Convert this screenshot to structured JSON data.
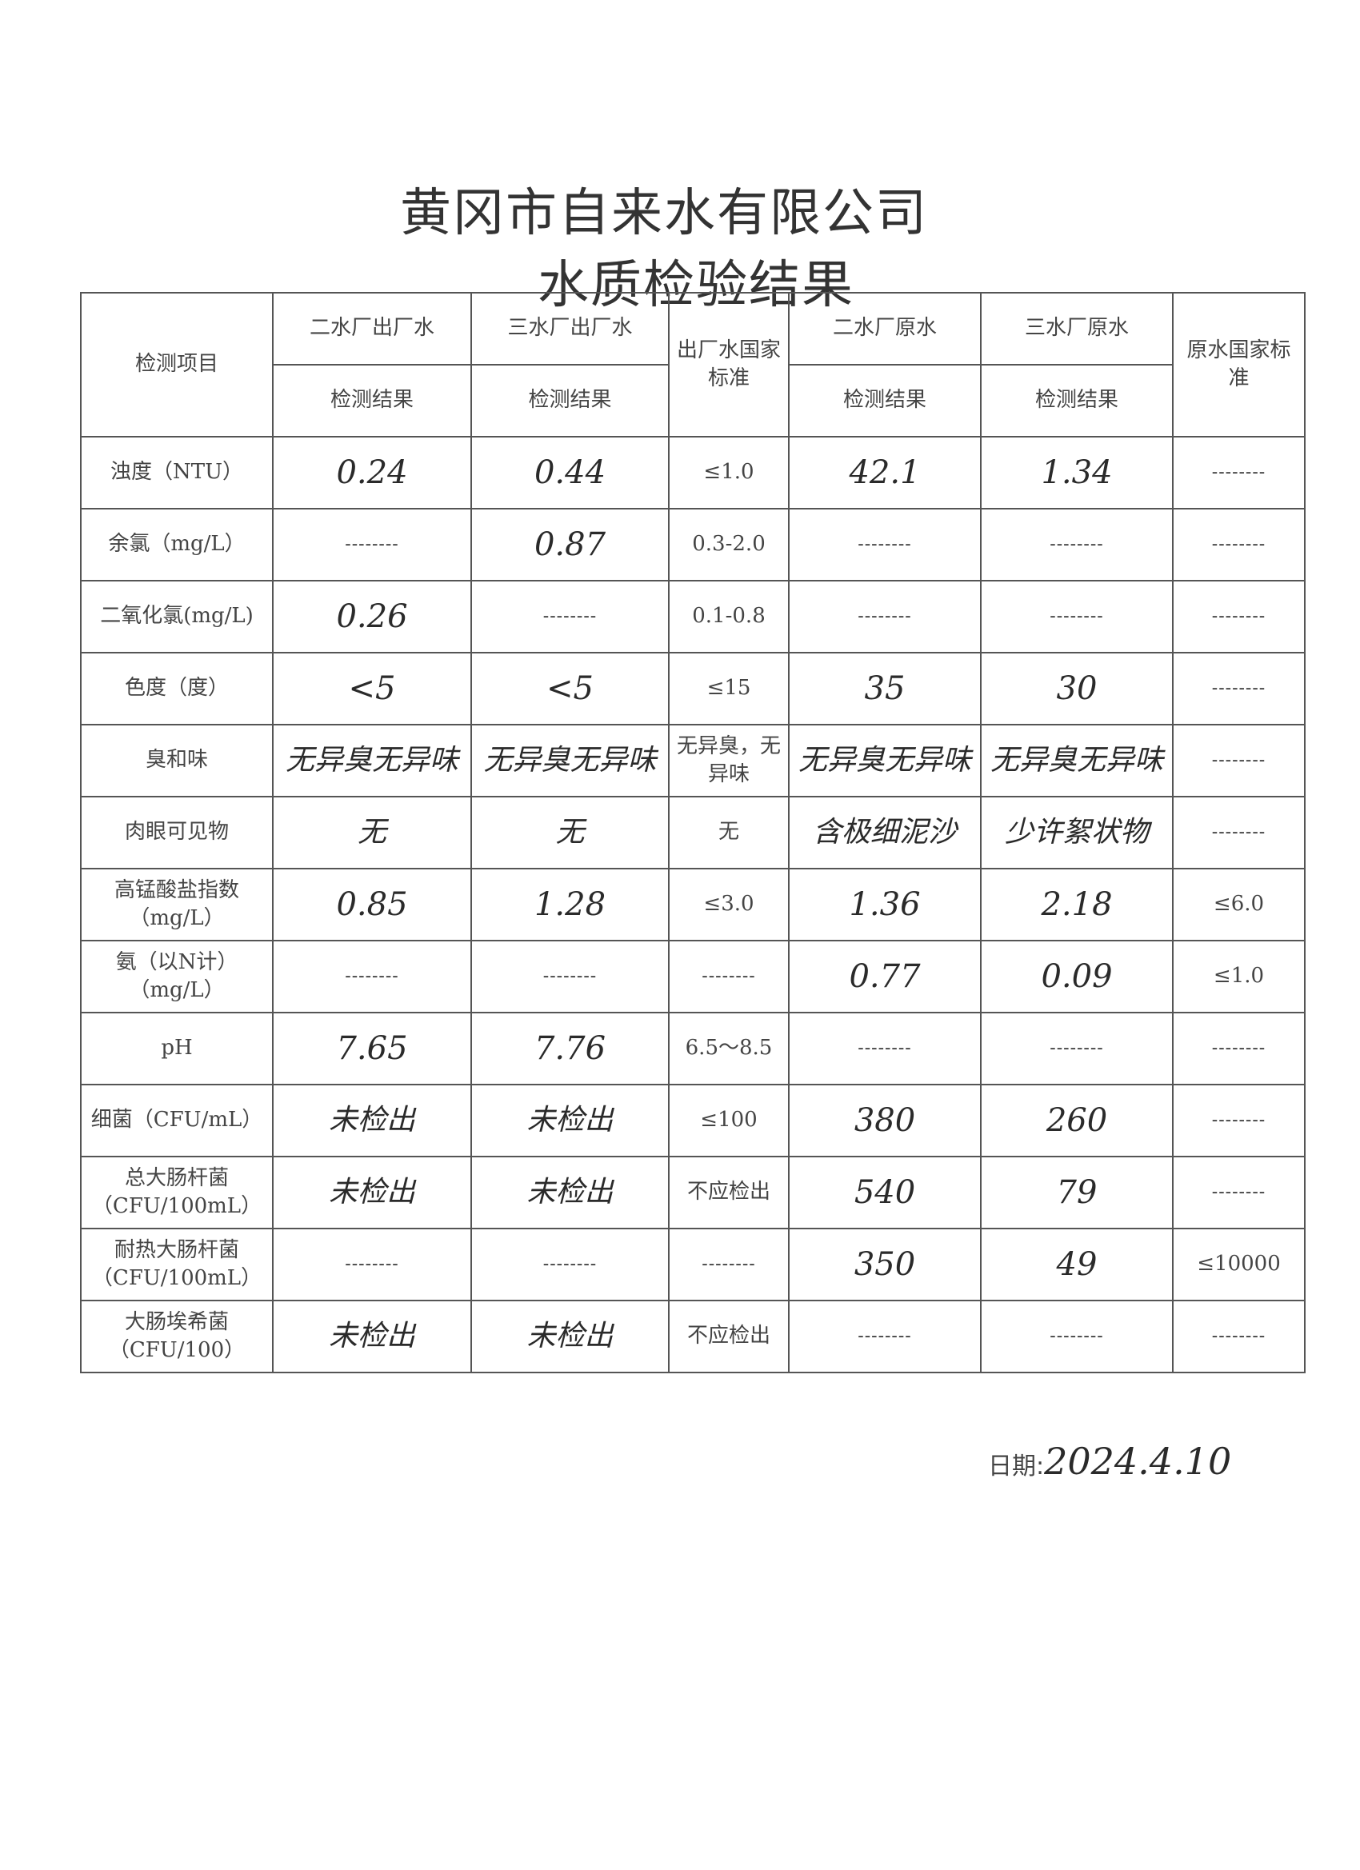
{
  "title": "黄冈市自来水有限公司",
  "subtitle": "水质检验结果",
  "headers": {
    "item": "检测项目",
    "col1": "二水厂出厂水",
    "col2": "三水厂出厂水",
    "col3": "出厂水国家标准",
    "col4": "二水厂原水",
    "col5": "三水厂原水",
    "col6": "原水国家标准",
    "result": "检测结果"
  },
  "rows": [
    {
      "item": "浊度（NTU）",
      "c1": "0.24",
      "c2": "0.44",
      "c3": "≤1.0",
      "c4": "42.1",
      "c5": "1.34",
      "c6": "--------"
    },
    {
      "item": "余氯（mg/L）",
      "c1": "--------",
      "c2": "0.87",
      "c3": "0.3-2.0",
      "c4": "--------",
      "c5": "--------",
      "c6": "--------"
    },
    {
      "item": "二氧化氯(mg/L)",
      "c1": "0.26",
      "c2": "--------",
      "c3": "0.1-0.8",
      "c4": "--------",
      "c5": "--------",
      "c6": "--------"
    },
    {
      "item": "色度（度）",
      "c1": "<5",
      "c2": "<5",
      "c3": "≤15",
      "c4": "35",
      "c5": "30",
      "c6": "--------"
    },
    {
      "item": "臭和味",
      "c1": "无异臭无异味",
      "c2": "无异臭无异味",
      "c3": "无异臭，无异味",
      "c4": "无异臭无异味",
      "c5": "无异臭无异味",
      "c6": "--------"
    },
    {
      "item": "肉眼可见物",
      "c1": "无",
      "c2": "无",
      "c3": "无",
      "c4": "含极细泥沙",
      "c5": "少许絮状物",
      "c6": "--------"
    },
    {
      "item": "高锰酸盐指数（mg/L）",
      "c1": "0.85",
      "c2": "1.28",
      "c3": "≤3.0",
      "c4": "1.36",
      "c5": "2.18",
      "c6": "≤6.0"
    },
    {
      "item": "氨（以N计）（mg/L）",
      "c1": "--------",
      "c2": "--------",
      "c3": "--------",
      "c4": "0.77",
      "c5": "0.09",
      "c6": "≤1.0"
    },
    {
      "item": "pH",
      "c1": "7.65",
      "c2": "7.76",
      "c3": "6.5～8.5",
      "c4": "--------",
      "c5": "--------",
      "c6": "--------"
    },
    {
      "item": "细菌（CFU/mL）",
      "c1": "未检出",
      "c2": "未检出",
      "c3": "≤100",
      "c4": "380",
      "c5": "260",
      "c6": "--------"
    },
    {
      "item": "总大肠杆菌（CFU/100mL）",
      "c1": "未检出",
      "c2": "未检出",
      "c3": "不应检出",
      "c4": "540",
      "c5": "79",
      "c6": "--------"
    },
    {
      "item": "耐热大肠杆菌（CFU/100mL）",
      "c1": "--------",
      "c2": "--------",
      "c3": "--------",
      "c4": "350",
      "c5": "49",
      "c6": "≤10000"
    },
    {
      "item": "大肠埃希菌（CFU/100）",
      "c1": "未检出",
      "c2": "未检出",
      "c3": "不应检出",
      "c4": "--------",
      "c5": "--------",
      "c6": "--------"
    }
  ],
  "date_label": "日期:",
  "date_value": "2024.4.10"
}
